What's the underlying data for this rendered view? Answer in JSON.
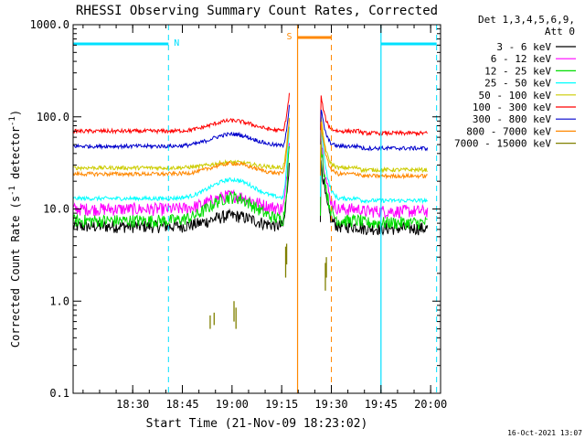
{
  "chart_data": {
    "type": "line",
    "title": "RHESSI Observing Summary Count Rates, Corrected",
    "xlabel": "Start Time (21-Nov-09 18:23:02)",
    "ylabel_main": "Corrected Count Rate (s",
    "ylabel_sup1": "-1",
    "ylabel_mid": " detector",
    "ylabel_sup2": "-1",
    "ylabel_end": ")",
    "y_scale": "log",
    "ylim": [
      0.1,
      1000
    ],
    "xlim_minutes": [
      18.2,
      20.05
    ],
    "x_ticks": [
      {
        "label": "18:30",
        "value": 18.5
      },
      {
        "label": "18:45",
        "value": 18.75
      },
      {
        "label": "19:00",
        "value": 19.0
      },
      {
        "label": "19:15",
        "value": 19.25
      },
      {
        "label": "19:30",
        "value": 19.5
      },
      {
        "label": "19:45",
        "value": 19.75
      },
      {
        "label": "20:00",
        "value": 20.0
      }
    ],
    "y_ticks": [
      {
        "label": "0.1",
        "value": 0.1
      },
      {
        "label": "1.0",
        "value": 1
      },
      {
        "label": "10.0",
        "value": 10
      },
      {
        "label": "100.0",
        "value": 100
      },
      {
        "label": "1000.0",
        "value": 1000
      }
    ],
    "legend": {
      "header1": "Det 1,3,4,5,6,9,",
      "header2": "Att 0",
      "placement": "right"
    },
    "series": [
      {
        "name": "3 - 6 keV",
        "color": "#000000",
        "quiet": 6.5,
        "bump": 1.3,
        "peak": 40
      },
      {
        "name": "6 - 12 keV",
        "color": "#ff00ff",
        "quiet": 10,
        "bump": 1.4,
        "peak": 70
      },
      {
        "name": "12 - 25 keV",
        "color": "#00dd00",
        "quiet": 7.5,
        "bump": 1.8,
        "peak": 60
      },
      {
        "name": "25 - 50 keV",
        "color": "#00ffff",
        "quiet": 13,
        "bump": 1.6,
        "peak": 90
      },
      {
        "name": "50 - 100 keV",
        "color": "#cccc00",
        "quiet": 28,
        "bump": 1.15,
        "peak": 110
      },
      {
        "name": "100 - 300 keV",
        "color": "#ff0000",
        "quiet": 70,
        "bump": 1.3,
        "peak": 190
      },
      {
        "name": "300 - 800 keV",
        "color": "#0000cc",
        "quiet": 48,
        "bump": 1.35,
        "peak": 140
      },
      {
        "name": "800 - 7000 keV",
        "color": "#ff8800",
        "quiet": 24,
        "bump": 1.3,
        "peak": 100
      },
      {
        "name": "7000 - 15000 keV",
        "color": "#808000",
        "quiet": null,
        "bump": null,
        "peak": 4
      }
    ],
    "annotations": [
      {
        "label": "N",
        "color": "#00e0ff",
        "meaning": "night",
        "intervals": [
          [
            18.2,
            18.68
          ],
          [
            19.75,
            20.03
          ]
        ]
      },
      {
        "label": "S",
        "color": "#ff8800",
        "meaning": "SAA",
        "intervals": [
          [
            19.33,
            19.5
          ]
        ]
      }
    ]
  },
  "footer": {
    "timestamp": "16-Oct-2021 13:07"
  }
}
